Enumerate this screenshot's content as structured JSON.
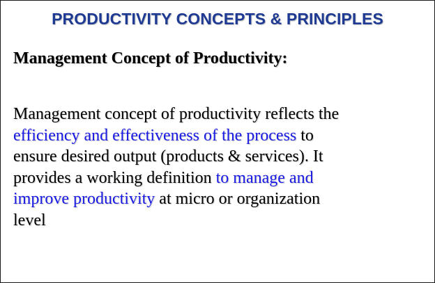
{
  "slide": {
    "title": "PRODUCTIVITY CONCEPTS & PRINCIPLES",
    "heading": "Management Concept of Productivity:",
    "body_lines": [
      [
        "Management concept of productivity reflects the"
      ],
      [
        "efficiency and effectiveness of the process",
        " to"
      ],
      [
        "ensure desired output (products & services). It"
      ],
      [
        "provides a working definition ",
        "to manage and"
      ],
      [
        "improve productivity",
        " at micro or organization"
      ],
      [
        "level"
      ]
    ]
  },
  "colors": {
    "title": "#1f3a93",
    "highlight": "#1a1ae6",
    "text": "#000000"
  }
}
